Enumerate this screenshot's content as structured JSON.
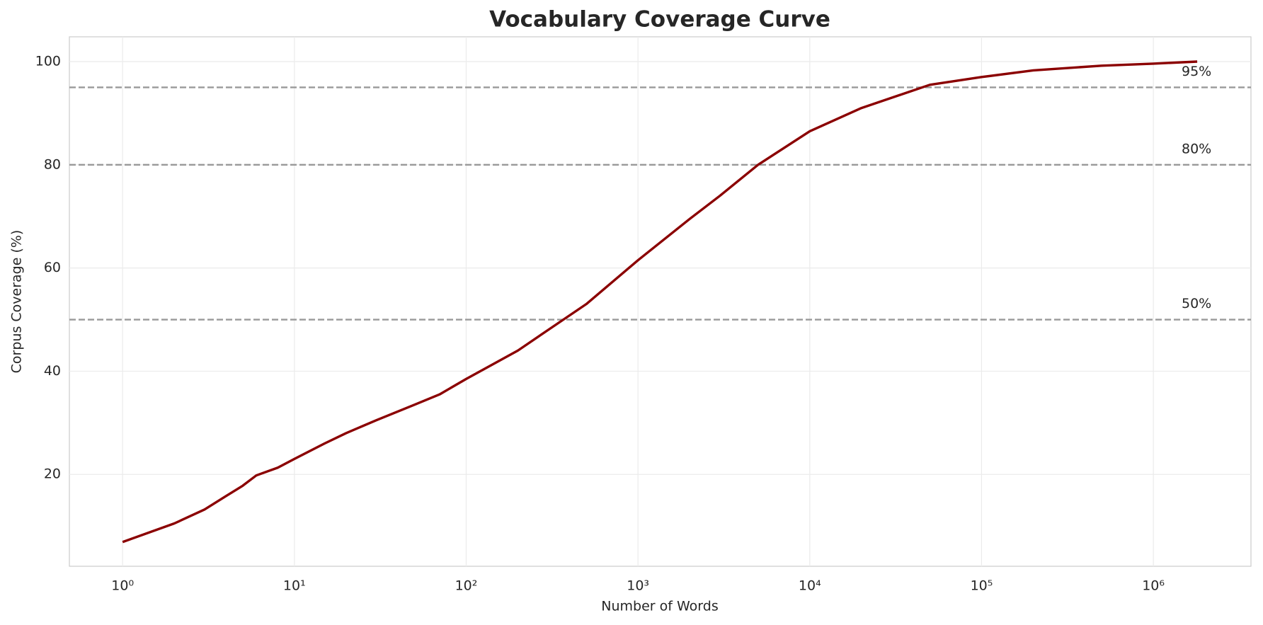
{
  "chart_data": {
    "type": "line",
    "title": "Vocabulary Coverage Curve",
    "x_label": "Number of Words",
    "y_label": "Corpus Coverage (%)",
    "x_scale": "log",
    "grid": true,
    "xlim": [
      0.49,
      3700000
    ],
    "ylim": [
      2.2,
      104.8
    ],
    "xticks": [
      {
        "value": 1,
        "label": "10⁰"
      },
      {
        "value": 10,
        "label": "10¹"
      },
      {
        "value": 100,
        "label": "10²"
      },
      {
        "value": 1000,
        "label": "10³"
      },
      {
        "value": 10000,
        "label": "10⁴"
      },
      {
        "value": 100000,
        "label": "10⁵"
      },
      {
        "value": 1000000,
        "label": "10⁶"
      }
    ],
    "yticks": [
      20,
      40,
      60,
      80,
      100
    ],
    "x": [
      1,
      2,
      3,
      4,
      5,
      6,
      8,
      10,
      15,
      20,
      30,
      50,
      70,
      100,
      200,
      300,
      500,
      1000,
      2000,
      3000,
      5000,
      10000,
      20000,
      50000,
      100000,
      200000,
      500000,
      1000000,
      1800000
    ],
    "series": [
      {
        "color": "#8b0000",
        "values": [
          6.9,
          10.5,
          13.2,
          15.8,
          17.8,
          19.8,
          21.3,
          23,
          26,
          28,
          30.5,
          33.5,
          35.5,
          38.5,
          44,
          48,
          53,
          61.5,
          69.5,
          74,
          80,
          86.5,
          91,
          95.5,
          97,
          98.3,
          99.2,
          99.6,
          100
        ]
      }
    ],
    "reference_lines": [
      {
        "value": 95,
        "label": "95%"
      },
      {
        "value": 80,
        "label": "80%"
      },
      {
        "value": 50,
        "label": "50%"
      }
    ],
    "reference_color": "#999999"
  }
}
